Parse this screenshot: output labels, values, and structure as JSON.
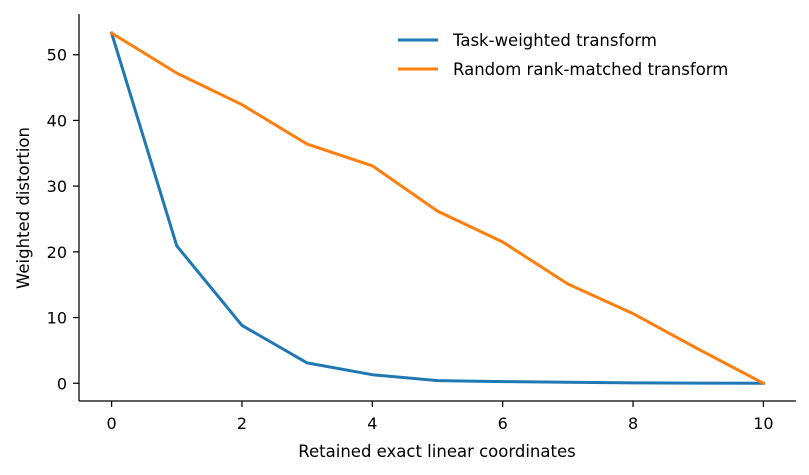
{
  "chart_data": {
    "type": "line",
    "title": "",
    "xlabel": "Retained exact linear coordinates",
    "ylabel": "Weighted distortion",
    "xlim": [
      -0.5,
      10.5
    ],
    "ylim": [
      -2.7,
      56.2
    ],
    "xticks": [
      0,
      2,
      4,
      6,
      8,
      10
    ],
    "yticks": [
      0,
      10,
      20,
      30,
      40,
      50
    ],
    "grid": false,
    "legend_position": "top-right",
    "series": [
      {
        "name": "Task-weighted transform",
        "color": "#1f77b4",
        "x": [
          0,
          1,
          2,
          3,
          4,
          5,
          6,
          7,
          8,
          9,
          10
        ],
        "y": [
          53.3,
          20.9,
          8.8,
          3.1,
          1.3,
          0.4,
          0.25,
          0.15,
          0.05,
          0.03,
          0.0
        ]
      },
      {
        "name": "Random rank-matched transform",
        "color": "#ff7f0e",
        "x": [
          0,
          1,
          2,
          3,
          4,
          5,
          6,
          7,
          8,
          9,
          10
        ],
        "y": [
          53.3,
          47.2,
          42.4,
          36.4,
          33.1,
          26.2,
          21.5,
          15.1,
          10.6,
          5.2,
          0.0
        ]
      }
    ]
  }
}
